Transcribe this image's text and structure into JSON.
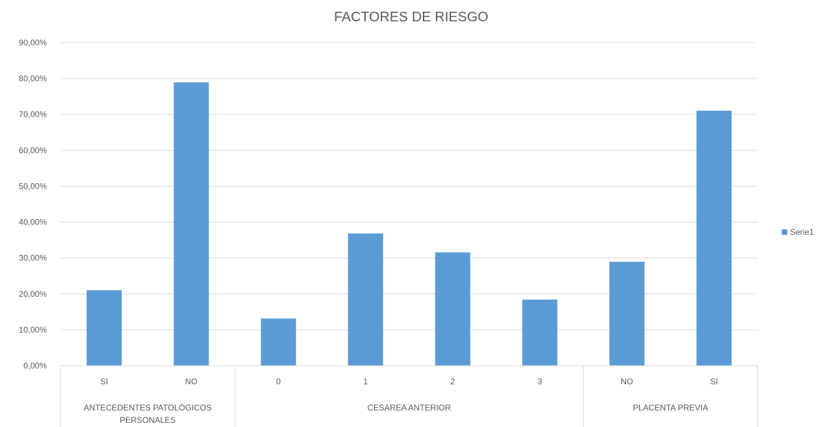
{
  "chart_data": {
    "type": "bar",
    "title": "FACTORES DE RIESGO",
    "xlabel": "",
    "ylabel": "",
    "ylim": [
      0,
      90
    ],
    "yticks": [
      "0,00%",
      "10,00%",
      "20,00%",
      "30,00%",
      "40,00%",
      "50,00%",
      "60,00%",
      "70,00%",
      "80,00%",
      "90,00%"
    ],
    "grid": true,
    "legend_position": "right",
    "groups": [
      {
        "label": "ANTECEDENTES PATOLÓGICOS PERSONALES",
        "label_lines": [
          "ANTECEDENTES PATOLÓGICOS",
          "PERSONALES"
        ],
        "categories": [
          "SI",
          "NO"
        ]
      },
      {
        "label": "CESAREA ANTERIOR",
        "label_lines": [
          "CESAREA ANTERIOR"
        ],
        "categories": [
          "0",
          "1",
          "2",
          "3"
        ]
      },
      {
        "label": "PLACENTA PREVIA",
        "label_lines": [
          "PLACENTA PREVIA"
        ],
        "categories": [
          "NO",
          "SI"
        ]
      }
    ],
    "categories": [
      "SI",
      "NO",
      "0",
      "1",
      "2",
      "3",
      "NO",
      "SI"
    ],
    "series": [
      {
        "name": "Serie1",
        "color": "#5b9bd5",
        "values": [
          21.05,
          78.95,
          13.16,
          36.84,
          31.58,
          18.42,
          28.95,
          71.05
        ]
      }
    ]
  }
}
